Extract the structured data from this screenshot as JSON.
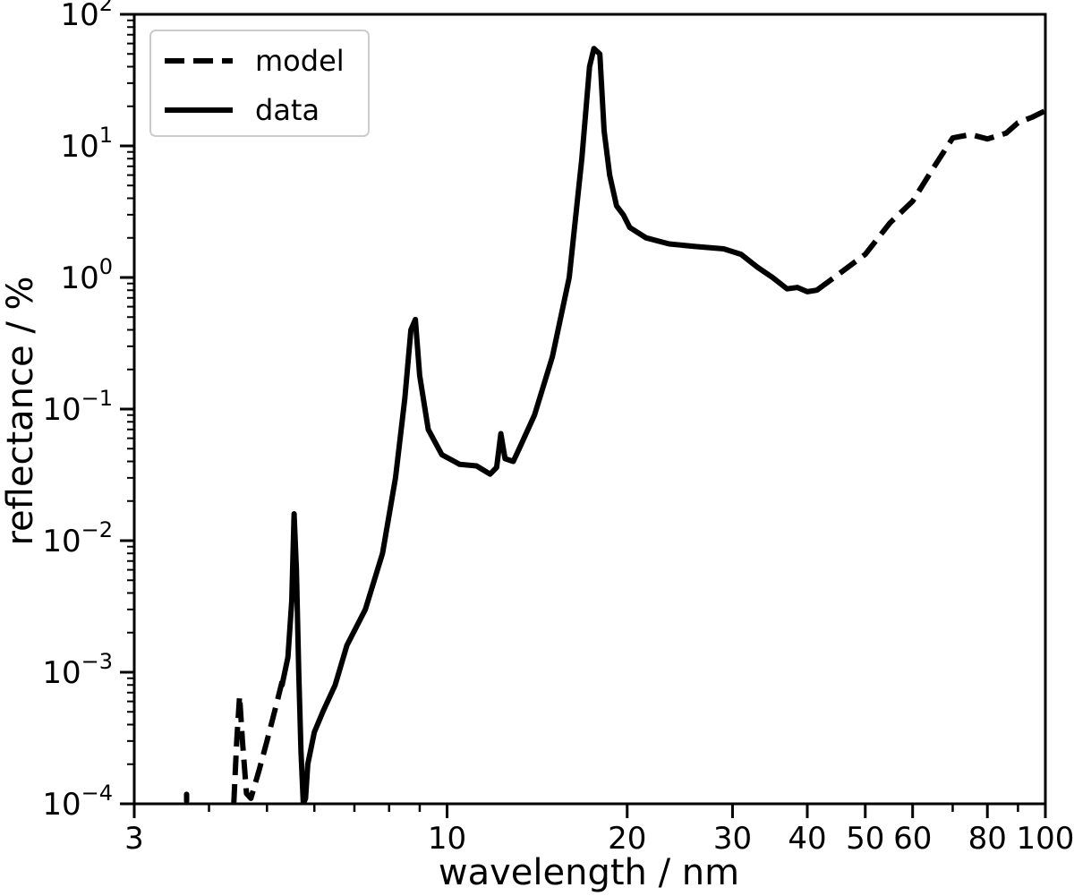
{
  "chart_data": {
    "type": "line",
    "xscale": "log",
    "yscale": "log",
    "xlim": [
      3,
      100
    ],
    "ylim": [
      0.0001,
      100
    ],
    "xlabel": "wavelength / nm",
    "ylabel": "reflectance / %",
    "x_ticks": [
      {
        "value": 3,
        "label": "3"
      },
      {
        "value": 10,
        "label": "10"
      },
      {
        "value": 20,
        "label": "20"
      },
      {
        "value": 30,
        "label": "30"
      },
      {
        "value": 40,
        "label": "40"
      },
      {
        "value": 50,
        "label": "50"
      },
      {
        "value": 60,
        "label": "60"
      },
      {
        "value": 80,
        "label": "80"
      },
      {
        "value": 100,
        "label": "100"
      }
    ],
    "x_minor_ticks": [
      4,
      5,
      6,
      7,
      8,
      9,
      70,
      90
    ],
    "y_ticks": [
      {
        "value": 0.0001,
        "base": "10",
        "exp": "−4"
      },
      {
        "value": 0.001,
        "base": "10",
        "exp": "−3"
      },
      {
        "value": 0.01,
        "base": "10",
        "exp": "−2"
      },
      {
        "value": 0.1,
        "base": "10",
        "exp": "−1"
      },
      {
        "value": 1,
        "base": "10",
        "exp": "0"
      },
      {
        "value": 10,
        "base": "10",
        "exp": "1"
      },
      {
        "value": 100,
        "base": "10",
        "exp": "2"
      }
    ],
    "legend": {
      "position": "top-left",
      "entries": [
        {
          "name": "model",
          "style": "dashed"
        },
        {
          "name": "data",
          "style": "solid"
        }
      ]
    },
    "series": [
      {
        "name": "model",
        "style": "dashed",
        "color": "#000000",
        "points": [
          [
            4.4,
            0.0001
          ],
          [
            4.45,
            0.0003
          ],
          [
            4.5,
            0.00066
          ],
          [
            4.55,
            0.0003
          ],
          [
            4.62,
            0.00012
          ],
          [
            4.7,
            0.00011
          ],
          [
            4.85,
            0.00018
          ],
          [
            5.0,
            0.0003
          ],
          [
            5.2,
            0.0006
          ],
          [
            5.3,
            0.00085
          ]
        ]
      },
      {
        "name": "model",
        "style": "dashed",
        "color": "#000000",
        "points": [
          [
            41.5,
            0.8
          ],
          [
            45,
            1.05
          ],
          [
            50,
            1.5
          ],
          [
            55,
            2.6
          ],
          [
            60,
            3.8
          ],
          [
            65,
            6.8
          ],
          [
            70,
            11.5
          ],
          [
            75,
            12.2
          ],
          [
            80,
            11.3
          ],
          [
            86,
            12.5
          ],
          [
            90,
            15
          ],
          [
            95,
            16.5
          ],
          [
            100,
            18.5
          ]
        ]
      },
      {
        "name": "data",
        "style": "solid",
        "color": "#000000",
        "points": [
          [
            5.3,
            0.0008
          ],
          [
            5.42,
            0.0013
          ],
          [
            5.5,
            0.0035
          ],
          [
            5.55,
            0.016
          ],
          [
            5.6,
            0.006
          ],
          [
            5.65,
            0.001
          ],
          [
            5.7,
            0.00025
          ],
          [
            5.75,
            0.0001
          ],
          [
            5.8,
            0.00011
          ],
          [
            5.85,
            0.0002
          ],
          [
            6.0,
            0.00035
          ],
          [
            6.2,
            0.0005
          ],
          [
            6.5,
            0.0008
          ],
          [
            6.8,
            0.0016
          ],
          [
            7.3,
            0.003
          ],
          [
            7.8,
            0.008
          ],
          [
            8.2,
            0.03
          ],
          [
            8.5,
            0.12
          ],
          [
            8.7,
            0.4
          ],
          [
            8.85,
            0.48
          ],
          [
            9.0,
            0.18
          ],
          [
            9.3,
            0.07
          ],
          [
            9.8,
            0.045
          ],
          [
            10.5,
            0.038
          ],
          [
            11.2,
            0.037
          ],
          [
            11.8,
            0.032
          ],
          [
            12.1,
            0.036
          ],
          [
            12.3,
            0.065
          ],
          [
            12.5,
            0.042
          ],
          [
            12.9,
            0.04
          ],
          [
            13.2,
            0.05
          ],
          [
            14.0,
            0.09
          ],
          [
            15.0,
            0.25
          ],
          [
            16.0,
            1.0
          ],
          [
            16.8,
            8
          ],
          [
            17.3,
            40
          ],
          [
            17.6,
            55
          ],
          [
            18.0,
            50
          ],
          [
            18.3,
            13
          ],
          [
            18.7,
            6
          ],
          [
            19.2,
            3.5
          ],
          [
            19.7,
            3.0
          ],
          [
            20.2,
            2.4
          ],
          [
            21.5,
            2.0
          ],
          [
            23.5,
            1.8
          ],
          [
            26,
            1.72
          ],
          [
            29,
            1.65
          ],
          [
            31,
            1.5
          ],
          [
            33,
            1.2
          ],
          [
            35,
            1.0
          ],
          [
            37,
            0.82
          ],
          [
            38.5,
            0.84
          ],
          [
            40,
            0.78
          ],
          [
            41.5,
            0.8
          ]
        ]
      },
      {
        "name": "data",
        "style": "solid",
        "color": "#000000",
        "points": [
          [
            3.67,
            0.000105
          ],
          [
            3.67,
            0.000118
          ]
        ]
      }
    ]
  }
}
